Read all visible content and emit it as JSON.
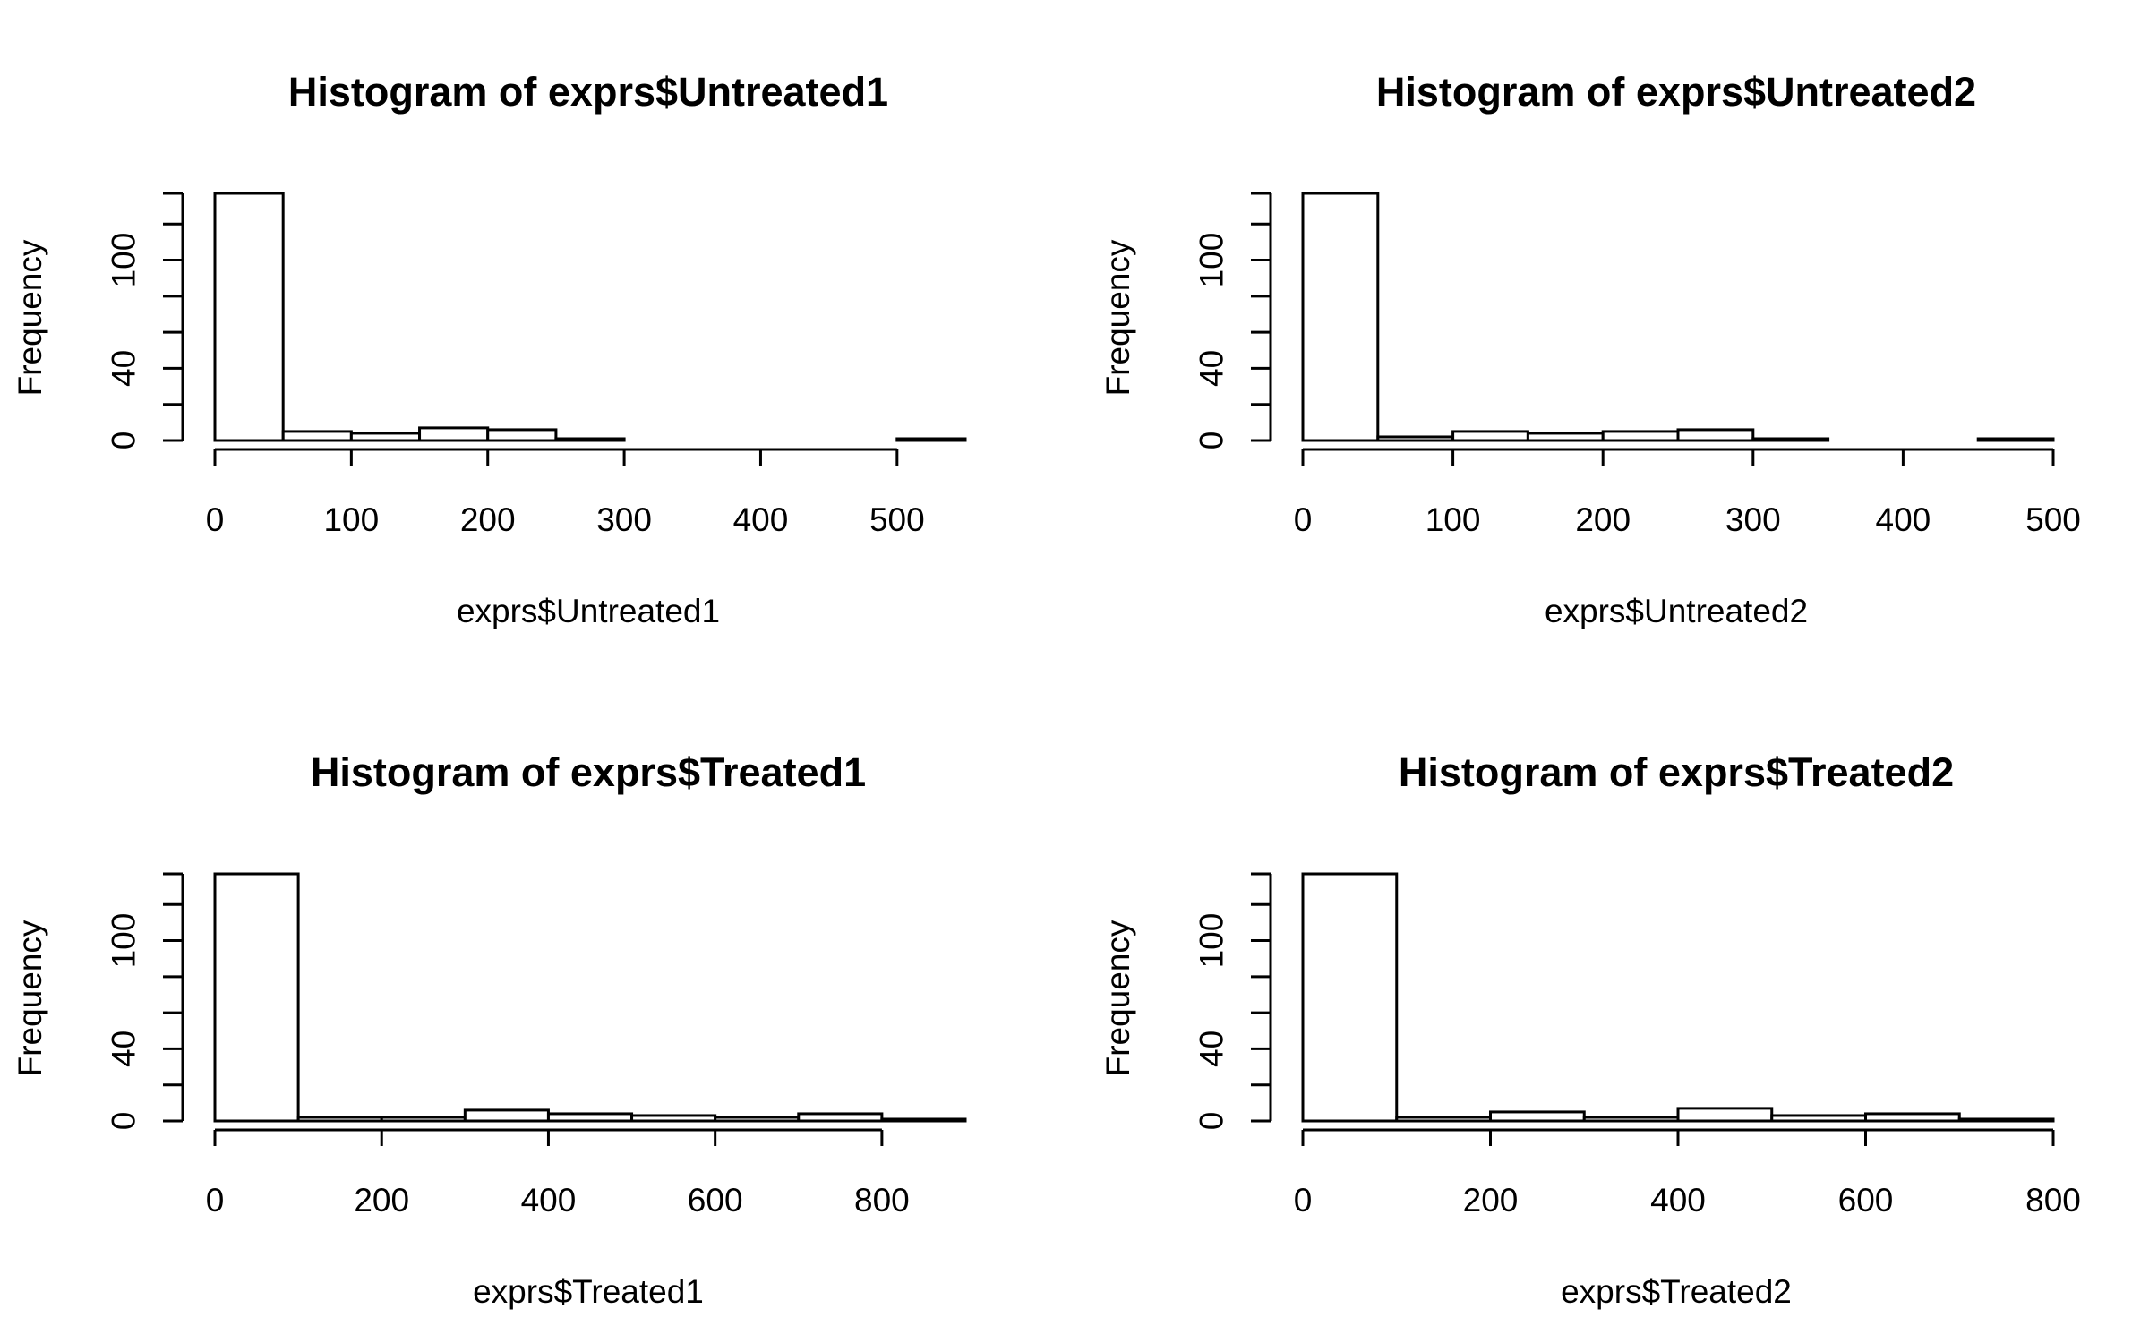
{
  "chart_data": [
    {
      "type": "bar",
      "title": "Histogram of exprs$Untreated1",
      "xlabel": "exprs$Untreated1",
      "ylabel": "Frequency",
      "bin_edges": [
        0,
        50,
        100,
        150,
        200,
        250,
        300,
        350,
        400,
        450,
        500,
        550
      ],
      "values": [
        137,
        5,
        4,
        7,
        6,
        1,
        0,
        0,
        0,
        0,
        1
      ],
      "xlim": [
        0,
        550
      ],
      "ylim": [
        0,
        137
      ],
      "xticks": [
        0,
        100,
        200,
        300,
        400,
        500
      ],
      "yticks": [
        0,
        20,
        40,
        60,
        80,
        100,
        120,
        137
      ],
      "ytick_labels": [
        0,
        40,
        100
      ]
    },
    {
      "type": "bar",
      "title": "Histogram of exprs$Untreated2",
      "xlabel": "exprs$Untreated2",
      "ylabel": "Frequency",
      "bin_edges": [
        0,
        50,
        100,
        150,
        200,
        250,
        300,
        350,
        400,
        450,
        500
      ],
      "values": [
        137,
        2,
        5,
        4,
        5,
        6,
        1,
        0,
        0,
        1
      ],
      "xlim": [
        0,
        500
      ],
      "ylim": [
        0,
        137
      ],
      "xticks": [
        0,
        100,
        200,
        300,
        400,
        500
      ],
      "yticks": [
        0,
        20,
        40,
        60,
        80,
        100,
        120,
        137
      ],
      "ytick_labels": [
        0,
        40,
        100
      ]
    },
    {
      "type": "bar",
      "title": "Histogram of exprs$Treated1",
      "xlabel": "exprs$Treated1",
      "ylabel": "Frequency",
      "bin_edges": [
        0,
        100,
        200,
        300,
        400,
        500,
        600,
        700,
        800,
        900
      ],
      "values": [
        137,
        2,
        2,
        6,
        4,
        3,
        2,
        4,
        1
      ],
      "xlim": [
        0,
        900
      ],
      "ylim": [
        0,
        137
      ],
      "xticks": [
        0,
        200,
        400,
        600,
        800
      ],
      "yticks": [
        0,
        20,
        40,
        60,
        80,
        100,
        120,
        137
      ],
      "ytick_labels": [
        0,
        40,
        100
      ]
    },
    {
      "type": "bar",
      "title": "Histogram of exprs$Treated2",
      "xlabel": "exprs$Treated2",
      "ylabel": "Frequency",
      "bin_edges": [
        0,
        100,
        200,
        300,
        400,
        500,
        600,
        700,
        800
      ],
      "values": [
        137,
        2,
        5,
        2,
        7,
        3,
        4,
        1
      ],
      "xlim": [
        0,
        800
      ],
      "ylim": [
        0,
        137
      ],
      "xticks": [
        0,
        200,
        400,
        600,
        800
      ],
      "yticks": [
        0,
        20,
        40,
        60,
        80,
        100,
        120,
        137
      ],
      "ytick_labels": [
        0,
        40,
        100
      ]
    }
  ]
}
